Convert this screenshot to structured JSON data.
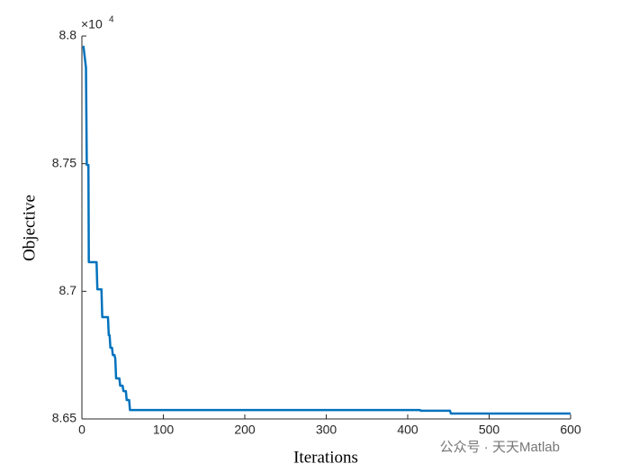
{
  "chart_data": {
    "type": "line",
    "xlabel": "Iterations",
    "ylabel": "Objective",
    "y_exponent": {
      "base": "×10",
      "power": "4"
    },
    "x": [
      1,
      2,
      5,
      6,
      8,
      8.5,
      18,
      19,
      24,
      25,
      32,
      33,
      34,
      35,
      37,
      38,
      40,
      41,
      42,
      46,
      47,
      50,
      51,
      54,
      55,
      58,
      59,
      415,
      416,
      452,
      453,
      600
    ],
    "series": [
      {
        "name": "Objective",
        "color": "#0072bd",
        "values": [
          8.7958,
          8.7958,
          8.7876,
          8.7495,
          8.7495,
          8.7114,
          8.7114,
          8.7008,
          8.7008,
          8.6899,
          8.6899,
          8.6828,
          8.6828,
          8.6779,
          8.6779,
          8.675,
          8.675,
          8.6736,
          8.6659,
          8.6659,
          8.663,
          8.663,
          8.6609,
          8.6609,
          8.6574,
          8.6574,
          8.6535,
          8.6535,
          8.6532,
          8.6532,
          8.6521,
          8.6521
        ]
      }
    ],
    "xlim": [
      0,
      600
    ],
    "xticks": [
      0,
      100,
      200,
      300,
      400,
      500,
      600
    ],
    "ylim": [
      8.65,
      8.8
    ],
    "yticks": [
      8.65,
      8.7,
      8.75,
      8.8
    ],
    "watermark": "公众号 · 天天Matlab"
  }
}
